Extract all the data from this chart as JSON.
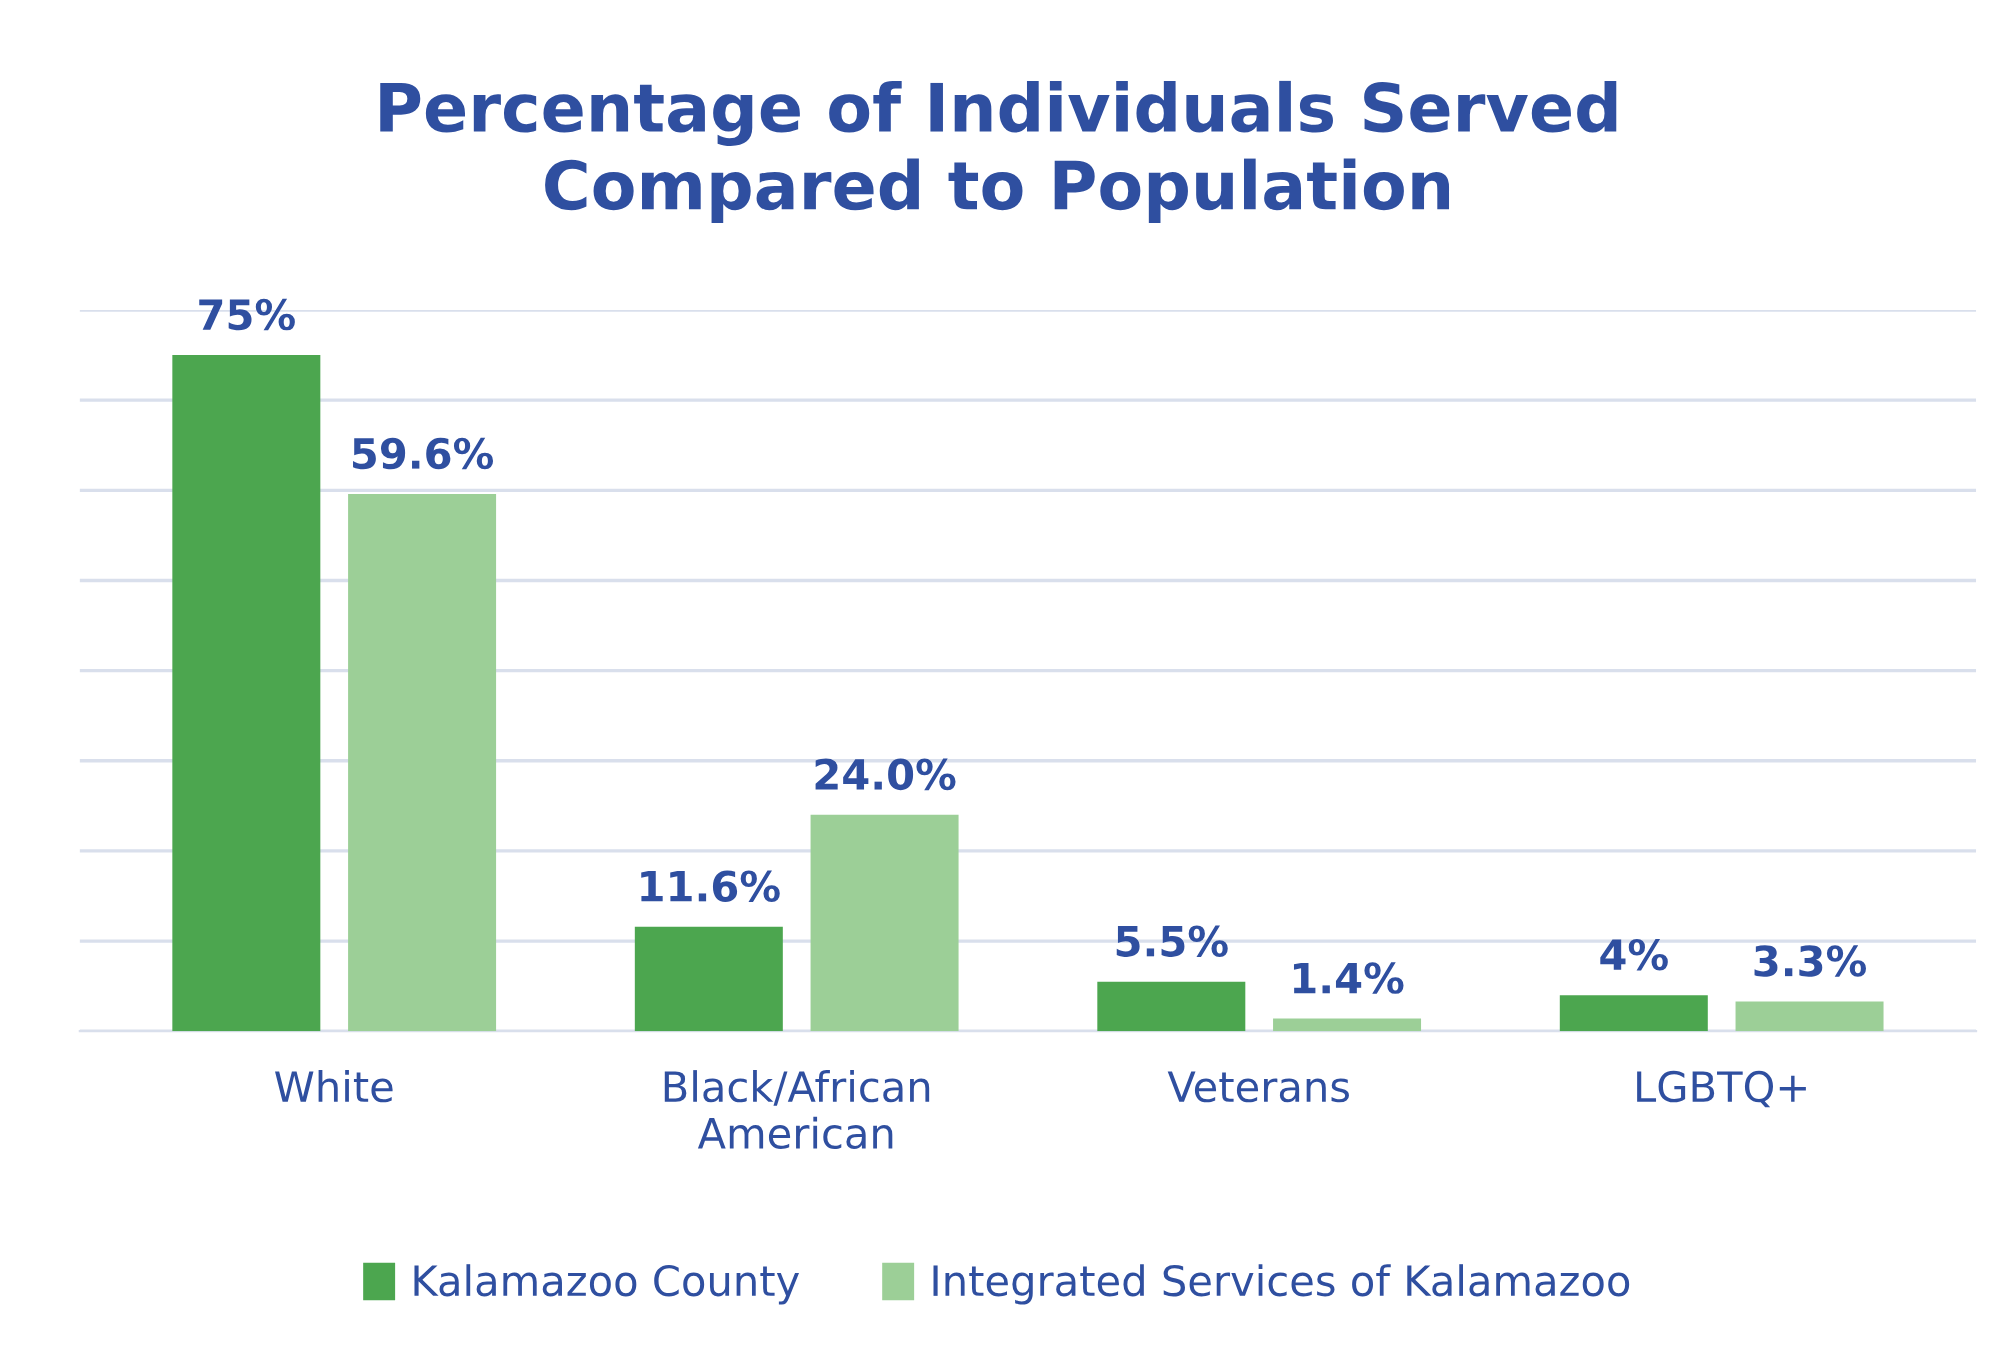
{
  "chart_data": {
    "type": "bar",
    "title": "Percentage of Individuals Served\nCompared to Population",
    "categories": [
      "White",
      "Black/African\nAmerican",
      "Veterans",
      "LGBTQ+"
    ],
    "series": [
      {
        "name": "Kalamazoo County",
        "color": "#4ca64f",
        "values": [
          75,
          11.6,
          5.5,
          4
        ],
        "value_labels": [
          "75%",
          "11.6%",
          "5.5%",
          "4%"
        ]
      },
      {
        "name": "Integrated Services of Kalamazoo",
        "color": "#9ccf97",
        "values": [
          59.6,
          24.0,
          1.4,
          3.3
        ],
        "value_labels": [
          "59.6%",
          "24.0%",
          "1.4%",
          "3.3%"
        ]
      }
    ],
    "ylim": [
      0,
      80
    ],
    "yticks": [
      {
        "value": 0,
        "label": null
      },
      {
        "value": 10,
        "label": null
      },
      {
        "value": 20,
        "label": null
      },
      {
        "value": 30,
        "label": null
      },
      {
        "value": 40,
        "label": null
      },
      {
        "value": 50,
        "label": null
      },
      {
        "value": 60,
        "label": null
      },
      {
        "value": 70,
        "label": null
      },
      {
        "value": 80,
        "label": null
      }
    ],
    "grid": "y",
    "legend": "bottom",
    "tick_labels": "x"
  }
}
